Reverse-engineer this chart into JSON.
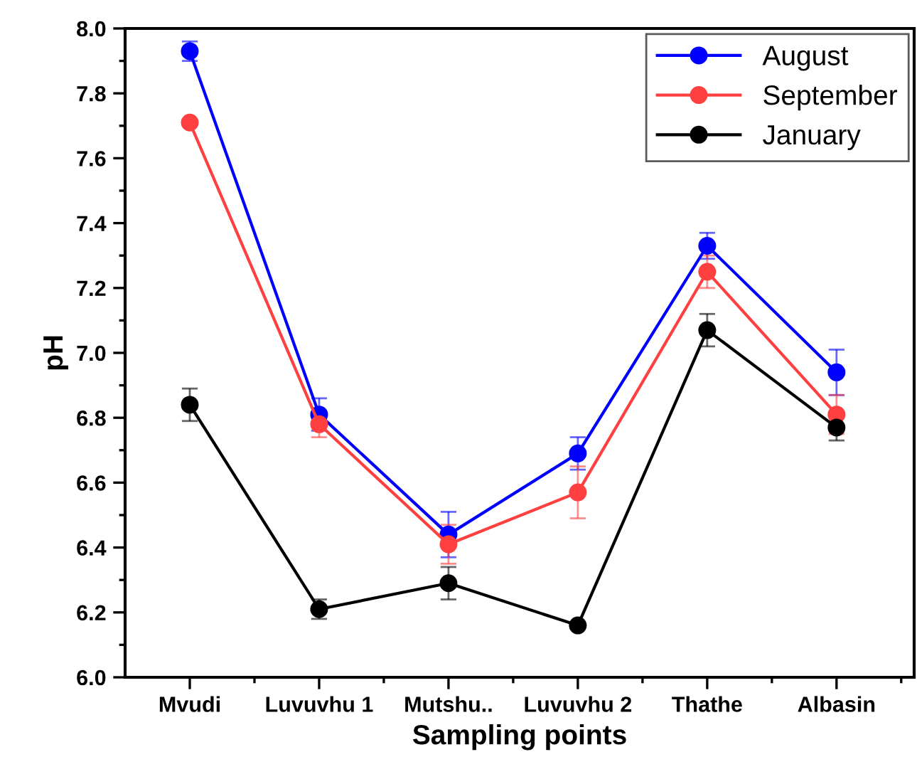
{
  "chart_data": {
    "type": "line",
    "xlabel": "Sampling points",
    "ylabel": "pH",
    "categories": [
      "Mvudi",
      "Luvuvhu 1",
      "Mutshu..",
      "Luvuvhu 2",
      "Thathe",
      "Albasin"
    ],
    "series": [
      {
        "name": "August",
        "color": "#0000ff",
        "values": [
          7.93,
          6.81,
          6.44,
          6.69,
          7.33,
          6.94
        ],
        "errors": [
          0.03,
          0.05,
          0.07,
          0.05,
          0.04,
          0.07
        ]
      },
      {
        "name": "September",
        "color": "#ff4040",
        "values": [
          7.71,
          6.78,
          6.41,
          6.57,
          7.25,
          6.81
        ],
        "errors": [
          0.01,
          0.04,
          0.06,
          0.08,
          0.05,
          0.06
        ]
      },
      {
        "name": "January",
        "color": "#000000",
        "values": [
          6.84,
          6.21,
          6.29,
          6.16,
          7.07,
          6.77
        ],
        "errors": [
          0.05,
          0.03,
          0.05,
          0.01,
          0.05,
          0.04
        ]
      }
    ],
    "ylim": [
      6.0,
      8.0
    ],
    "yticks": [
      {
        "value": 6.0,
        "label": "6.0"
      },
      6.2,
      6.4,
      6.6,
      6.8,
      {
        "value": 7.0,
        "label": "7.0"
      },
      7.2,
      7.4,
      7.6,
      7.8,
      {
        "value": 8.0,
        "label": "8.0"
      }
    ],
    "marker": "circle",
    "line_style": "solid",
    "grid": false,
    "legend": "top right"
  }
}
